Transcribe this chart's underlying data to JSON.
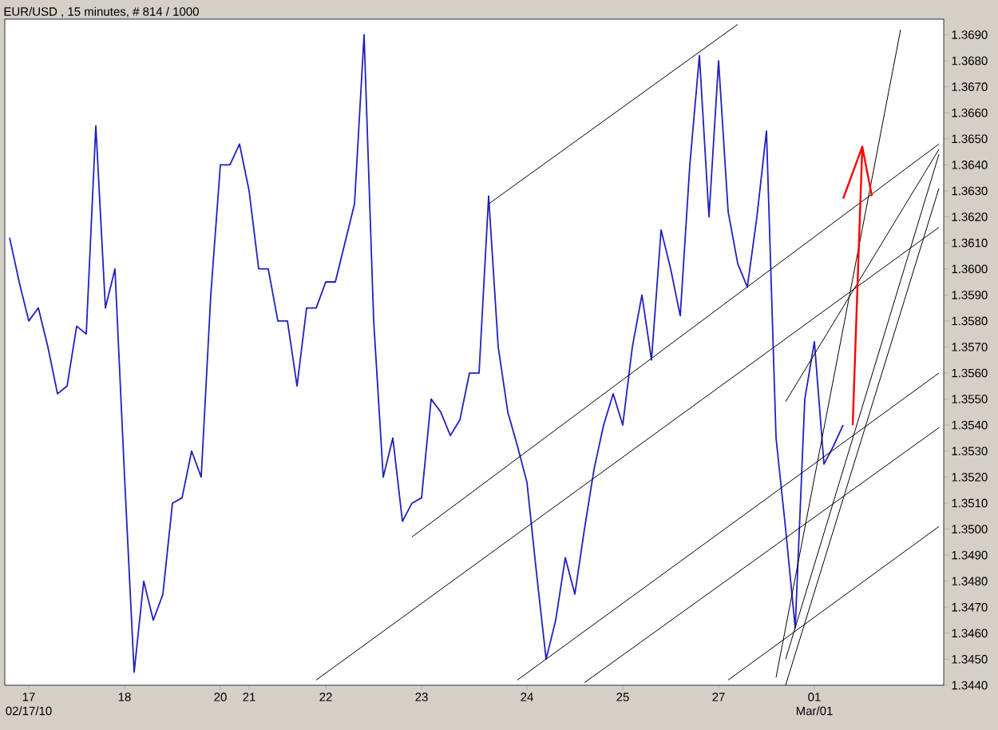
{
  "chart_data": {
    "type": "line",
    "title": "EUR/USD , 15 minutes, # 814 / 1000",
    "categories": [
      null,
      null,
      "17",
      null,
      null,
      null,
      null,
      null,
      null,
      null,
      null,
      null,
      "18",
      null,
      null,
      null,
      null,
      null,
      null,
      null,
      null,
      null,
      "20",
      null,
      null,
      "21",
      null,
      null,
      null,
      null,
      null,
      null,
      null,
      "22",
      null,
      null,
      null,
      null,
      null,
      null,
      null,
      null,
      null,
      "23",
      null,
      null,
      null,
      null,
      null,
      null,
      null,
      null,
      null,
      null,
      "24",
      null,
      null,
      null,
      null,
      null,
      null,
      null,
      null,
      null,
      "25",
      null,
      null,
      null,
      null,
      null,
      null,
      null,
      null,
      null,
      "27",
      null,
      null,
      null,
      null,
      null,
      null,
      null,
      null,
      null,
      "01",
      null,
      null,
      null,
      null,
      null,
      null,
      null,
      null,
      null,
      null,
      null,
      null,
      null
    ],
    "ylim": [
      1.344,
      1.3696
    ],
    "yticks": [
      {
        "value": 1.344,
        "label": "1.3440"
      },
      {
        "value": 1.345,
        "label": "1.3450"
      },
      {
        "value": 1.346,
        "label": "1.3460"
      },
      {
        "value": 1.347,
        "label": "1.3470"
      },
      {
        "value": 1.348,
        "label": "1.3480"
      },
      {
        "value": 1.349,
        "label": "1.3490"
      },
      {
        "value": 1.35,
        "label": "1.3500"
      },
      {
        "value": 1.351,
        "label": "1.3510"
      },
      {
        "value": 1.352,
        "label": "1.3520"
      },
      {
        "value": 1.353,
        "label": "1.3530"
      },
      {
        "value": 1.354,
        "label": "1.3540"
      },
      {
        "value": 1.355,
        "label": "1.3550"
      },
      {
        "value": 1.356,
        "label": "1.3560"
      },
      {
        "value": 1.357,
        "label": "1.3570"
      },
      {
        "value": 1.358,
        "label": "1.3580"
      },
      {
        "value": 1.359,
        "label": "1.3590"
      },
      {
        "value": 1.36,
        "label": "1.3600"
      },
      {
        "value": 1.361,
        "label": "1.3610"
      },
      {
        "value": 1.362,
        "label": "1.3620"
      },
      {
        "value": 1.363,
        "label": "1.3630"
      },
      {
        "value": 1.364,
        "label": "1.3640"
      },
      {
        "value": 1.365,
        "label": "1.3650"
      },
      {
        "value": 1.366,
        "label": "1.3660"
      },
      {
        "value": 1.367,
        "label": "1.3670"
      },
      {
        "value": 1.368,
        "label": "1.3680"
      },
      {
        "value": 1.369,
        "label": "1.3690"
      }
    ],
    "annotations": [
      "02/17/10",
      "Mar/01"
    ],
    "grid": false,
    "marker": "none",
    "line_style": "solid",
    "series": [
      {
        "color": "#2020c0",
        "values": [
          1.3612,
          1.3595,
          1.358,
          1.3585,
          1.357,
          1.3552,
          1.3555,
          1.3578,
          1.3575,
          1.3655,
          1.3585,
          1.36,
          1.352,
          1.3445,
          1.348,
          1.3465,
          1.3475,
          1.351,
          1.3512,
          1.353,
          1.352,
          1.359,
          1.364,
          1.364,
          1.3648,
          1.363,
          1.36,
          1.36,
          1.358,
          1.358,
          1.3555,
          1.3585,
          1.3585,
          1.3595,
          1.3595,
          1.361,
          1.3625,
          1.369,
          1.358,
          1.352,
          1.3535,
          1.3503,
          1.351,
          1.3512,
          1.355,
          1.3545,
          1.3536,
          1.3542,
          1.356,
          1.356,
          1.3628,
          1.357,
          1.3545,
          1.3532,
          1.3518,
          1.3483,
          1.345,
          1.3465,
          1.3489,
          1.3475,
          1.35,
          1.3523,
          1.354,
          1.3552,
          1.354,
          1.357,
          1.359,
          1.3565,
          1.3615,
          1.36,
          1.3582,
          1.364,
          1.3682,
          1.362,
          1.368,
          1.3622,
          1.3602,
          1.3593,
          1.362,
          1.3653,
          1.3535,
          1.35,
          1.3462,
          1.355,
          1.3572,
          1.3525,
          1.3532,
          1.354,
          null,
          null,
          null,
          null,
          null,
          null,
          null,
          null,
          null,
          null
        ]
      },
      {
        "color": "#000000",
        "values": [
          null,
          null,
          null,
          null,
          null,
          null,
          null,
          null,
          null,
          null,
          null,
          null,
          null,
          null,
          null,
          null,
          null,
          null,
          null,
          null,
          null,
          null,
          null,
          null,
          null,
          null,
          null,
          null,
          null,
          null,
          null,
          null,
          null,
          null,
          null,
          null,
          null,
          null,
          null,
          null,
          null,
          null,
          null,
          null,
          null,
          null,
          null,
          null,
          null,
          null,
          1.3625,
          null,
          null,
          null,
          null,
          null,
          null,
          null,
          null,
          null,
          null,
          null,
          null,
          null,
          null,
          null,
          null,
          null,
          null,
          null,
          null,
          null,
          null,
          null,
          null,
          null,
          1.3694,
          null,
          null,
          null,
          null,
          null,
          null,
          null,
          null,
          null,
          null,
          null,
          null,
          null,
          null,
          null,
          null,
          null,
          null,
          null,
          null,
          null
        ]
      },
      {
        "color": "#000000",
        "values": [
          null,
          null,
          null,
          null,
          null,
          null,
          null,
          null,
          null,
          null,
          null,
          null,
          null,
          null,
          null,
          null,
          null,
          null,
          null,
          null,
          null,
          null,
          null,
          null,
          null,
          null,
          null,
          null,
          null,
          null,
          null,
          null,
          null,
          null,
          null,
          null,
          null,
          null,
          null,
          null,
          null,
          null,
          1.3497,
          null,
          null,
          null,
          null,
          null,
          null,
          null,
          null,
          null,
          null,
          null,
          null,
          null,
          null,
          null,
          null,
          null,
          null,
          null,
          null,
          null,
          null,
          null,
          null,
          null,
          null,
          null,
          null,
          null,
          null,
          null,
          null,
          null,
          null,
          null,
          null,
          null,
          null,
          null,
          null,
          null,
          null,
          null,
          null,
          null,
          null,
          null,
          null,
          null,
          null,
          null,
          null,
          null,
          null,
          1.3648
        ]
      },
      {
        "color": "#000000",
        "values": [
          null,
          null,
          null,
          null,
          null,
          null,
          null,
          null,
          null,
          null,
          null,
          null,
          null,
          null,
          null,
          null,
          null,
          null,
          null,
          null,
          null,
          null,
          null,
          null,
          null,
          null,
          null,
          null,
          null,
          null,
          null,
          null,
          1.3442,
          null,
          null,
          null,
          null,
          null,
          null,
          null,
          null,
          null,
          null,
          null,
          null,
          null,
          null,
          null,
          null,
          null,
          null,
          null,
          null,
          null,
          null,
          null,
          null,
          null,
          null,
          null,
          null,
          null,
          null,
          null,
          null,
          null,
          null,
          null,
          null,
          null,
          null,
          null,
          null,
          null,
          null,
          null,
          null,
          null,
          null,
          null,
          null,
          null,
          null,
          null,
          null,
          null,
          null,
          null,
          null,
          null,
          null,
          null,
          null,
          null,
          null,
          null,
          null,
          1.3616
        ]
      },
      {
        "color": "#000000",
        "values": [
          null,
          null,
          null,
          null,
          null,
          null,
          null,
          null,
          null,
          null,
          null,
          null,
          null,
          null,
          null,
          null,
          null,
          null,
          null,
          null,
          null,
          null,
          null,
          null,
          null,
          null,
          null,
          null,
          null,
          null,
          null,
          null,
          null,
          null,
          null,
          null,
          null,
          null,
          null,
          null,
          null,
          null,
          null,
          null,
          null,
          null,
          null,
          null,
          null,
          null,
          null,
          null,
          null,
          1.3442,
          null,
          null,
          null,
          null,
          null,
          null,
          null,
          null,
          null,
          null,
          null,
          null,
          null,
          null,
          null,
          null,
          null,
          null,
          null,
          null,
          null,
          null,
          null,
          null,
          null,
          null,
          null,
          null,
          null,
          null,
          null,
          null,
          null,
          null,
          null,
          null,
          null,
          null,
          null,
          null,
          null,
          null,
          null,
          1.356
        ]
      },
      {
        "color": "#000000",
        "values": [
          null,
          null,
          null,
          null,
          null,
          null,
          null,
          null,
          null,
          null,
          null,
          null,
          null,
          null,
          null,
          null,
          null,
          null,
          null,
          null,
          null,
          null,
          null,
          null,
          null,
          null,
          null,
          null,
          null,
          null,
          null,
          null,
          null,
          null,
          null,
          null,
          null,
          null,
          null,
          null,
          null,
          null,
          null,
          null,
          null,
          null,
          null,
          null,
          null,
          null,
          null,
          null,
          null,
          null,
          null,
          null,
          null,
          null,
          null,
          null,
          1.3441,
          null,
          null,
          null,
          null,
          null,
          null,
          null,
          null,
          null,
          null,
          null,
          null,
          null,
          null,
          null,
          null,
          null,
          null,
          null,
          null,
          null,
          null,
          null,
          null,
          null,
          null,
          null,
          null,
          null,
          null,
          null,
          null,
          null,
          null,
          null,
          null,
          1.3539
        ]
      },
      {
        "color": "#000000",
        "values": [
          null,
          null,
          null,
          null,
          null,
          null,
          null,
          null,
          null,
          null,
          null,
          null,
          null,
          null,
          null,
          null,
          null,
          null,
          null,
          null,
          null,
          null,
          null,
          null,
          null,
          null,
          null,
          null,
          null,
          null,
          null,
          null,
          null,
          null,
          null,
          null,
          null,
          null,
          null,
          null,
          null,
          null,
          null,
          null,
          null,
          null,
          null,
          null,
          null,
          null,
          null,
          null,
          null,
          null,
          null,
          null,
          null,
          null,
          null,
          null,
          null,
          null,
          null,
          null,
          null,
          null,
          null,
          null,
          null,
          null,
          null,
          null,
          null,
          null,
          null,
          1.3442,
          null,
          null,
          null,
          null,
          null,
          null,
          null,
          null,
          null,
          null,
          null,
          null,
          null,
          null,
          null,
          null,
          null,
          null,
          null,
          null,
          null,
          1.3501
        ]
      },
      {
        "color": "#000000",
        "values": [
          null,
          null,
          null,
          null,
          null,
          null,
          null,
          null,
          null,
          null,
          null,
          null,
          null,
          null,
          null,
          null,
          null,
          null,
          null,
          null,
          null,
          null,
          null,
          null,
          null,
          null,
          null,
          null,
          null,
          null,
          null,
          null,
          null,
          null,
          null,
          null,
          null,
          null,
          null,
          null,
          null,
          null,
          null,
          null,
          null,
          null,
          null,
          null,
          null,
          null,
          null,
          null,
          null,
          null,
          null,
          null,
          null,
          null,
          null,
          null,
          null,
          null,
          null,
          null,
          null,
          null,
          null,
          null,
          null,
          null,
          null,
          null,
          null,
          null,
          null,
          null,
          null,
          null,
          null,
          null,
          1.3443,
          null,
          null,
          null,
          null,
          null,
          null,
          null,
          null,
          null,
          null,
          null,
          null,
          1.3692,
          null,
          null,
          null,
          null
        ]
      },
      {
        "color": "#000000",
        "values": [
          null,
          null,
          null,
          null,
          null,
          null,
          null,
          null,
          null,
          null,
          null,
          null,
          null,
          null,
          null,
          null,
          null,
          null,
          null,
          null,
          null,
          null,
          null,
          null,
          null,
          null,
          null,
          null,
          null,
          null,
          null,
          null,
          null,
          null,
          null,
          null,
          null,
          null,
          null,
          null,
          null,
          null,
          null,
          null,
          null,
          null,
          null,
          null,
          null,
          null,
          null,
          null,
          null,
          null,
          null,
          null,
          null,
          null,
          null,
          null,
          null,
          null,
          null,
          null,
          null,
          null,
          null,
          null,
          null,
          null,
          null,
          null,
          null,
          null,
          null,
          null,
          null,
          null,
          null,
          null,
          null,
          1.3549,
          null,
          null,
          null,
          null,
          null,
          null,
          null,
          null,
          null,
          null,
          null,
          null,
          null,
          null,
          null,
          1.3646
        ]
      },
      {
        "color": "#000000",
        "values": [
          null,
          null,
          null,
          null,
          null,
          null,
          null,
          null,
          null,
          null,
          null,
          null,
          null,
          null,
          null,
          null,
          null,
          null,
          null,
          null,
          null,
          null,
          null,
          null,
          null,
          null,
          null,
          null,
          null,
          null,
          null,
          null,
          null,
          null,
          null,
          null,
          null,
          null,
          null,
          null,
          null,
          null,
          null,
          null,
          null,
          null,
          null,
          null,
          null,
          null,
          null,
          null,
          null,
          null,
          null,
          null,
          null,
          null,
          null,
          null,
          null,
          null,
          null,
          null,
          null,
          null,
          null,
          null,
          null,
          null,
          null,
          null,
          null,
          null,
          null,
          null,
          null,
          null,
          null,
          null,
          null,
          1.345,
          null,
          null,
          null,
          null,
          null,
          null,
          null,
          null,
          null,
          null,
          null,
          null,
          null,
          null,
          null,
          1.3644
        ]
      },
      {
        "color": "#000000",
        "values": [
          null,
          null,
          null,
          null,
          null,
          null,
          null,
          null,
          null,
          null,
          null,
          null,
          null,
          null,
          null,
          null,
          null,
          null,
          null,
          null,
          null,
          null,
          null,
          null,
          null,
          null,
          null,
          null,
          null,
          null,
          null,
          null,
          null,
          null,
          null,
          null,
          null,
          null,
          null,
          null,
          null,
          null,
          null,
          null,
          null,
          null,
          null,
          null,
          null,
          null,
          null,
          null,
          null,
          null,
          null,
          null,
          null,
          null,
          null,
          null,
          null,
          null,
          null,
          null,
          null,
          null,
          null,
          null,
          null,
          null,
          null,
          null,
          null,
          null,
          null,
          null,
          null,
          null,
          null,
          null,
          null,
          1.344,
          null,
          null,
          null,
          null,
          null,
          null,
          null,
          null,
          null,
          null,
          null,
          null,
          null,
          null,
          null,
          1.3631
        ]
      },
      {
        "color": "#ff0000",
        "values": [
          null,
          null,
          null,
          null,
          null,
          null,
          null,
          null,
          null,
          null,
          null,
          null,
          null,
          null,
          null,
          null,
          null,
          null,
          null,
          null,
          null,
          null,
          null,
          null,
          null,
          null,
          null,
          null,
          null,
          null,
          null,
          null,
          null,
          null,
          null,
          null,
          null,
          null,
          null,
          null,
          null,
          null,
          null,
          null,
          null,
          null,
          null,
          null,
          null,
          null,
          null,
          null,
          null,
          null,
          null,
          null,
          null,
          null,
          null,
          null,
          null,
          null,
          null,
          null,
          null,
          null,
          null,
          null,
          null,
          null,
          null,
          null,
          null,
          null,
          null,
          null,
          null,
          null,
          null,
          null,
          null,
          null,
          null,
          null,
          null,
          null,
          null,
          null,
          1.354,
          1.3647,
          null,
          null,
          null,
          null,
          null,
          null,
          null,
          null
        ]
      },
      {
        "color": "#ff0000",
        "values": [
          null,
          null,
          null,
          null,
          null,
          null,
          null,
          null,
          null,
          null,
          null,
          null,
          null,
          null,
          null,
          null,
          null,
          null,
          null,
          null,
          null,
          null,
          null,
          null,
          null,
          null,
          null,
          null,
          null,
          null,
          null,
          null,
          null,
          null,
          null,
          null,
          null,
          null,
          null,
          null,
          null,
          null,
          null,
          null,
          null,
          null,
          null,
          null,
          null,
          null,
          null,
          null,
          null,
          null,
          null,
          null,
          null,
          null,
          null,
          null,
          null,
          null,
          null,
          null,
          null,
          null,
          null,
          null,
          null,
          null,
          null,
          null,
          null,
          null,
          null,
          null,
          null,
          null,
          null,
          null,
          null,
          null,
          null,
          null,
          null,
          null,
          null,
          1.3627,
          null,
          1.3647,
          1.3628,
          null,
          null,
          null,
          null,
          null,
          null,
          null
        ]
      }
    ]
  }
}
